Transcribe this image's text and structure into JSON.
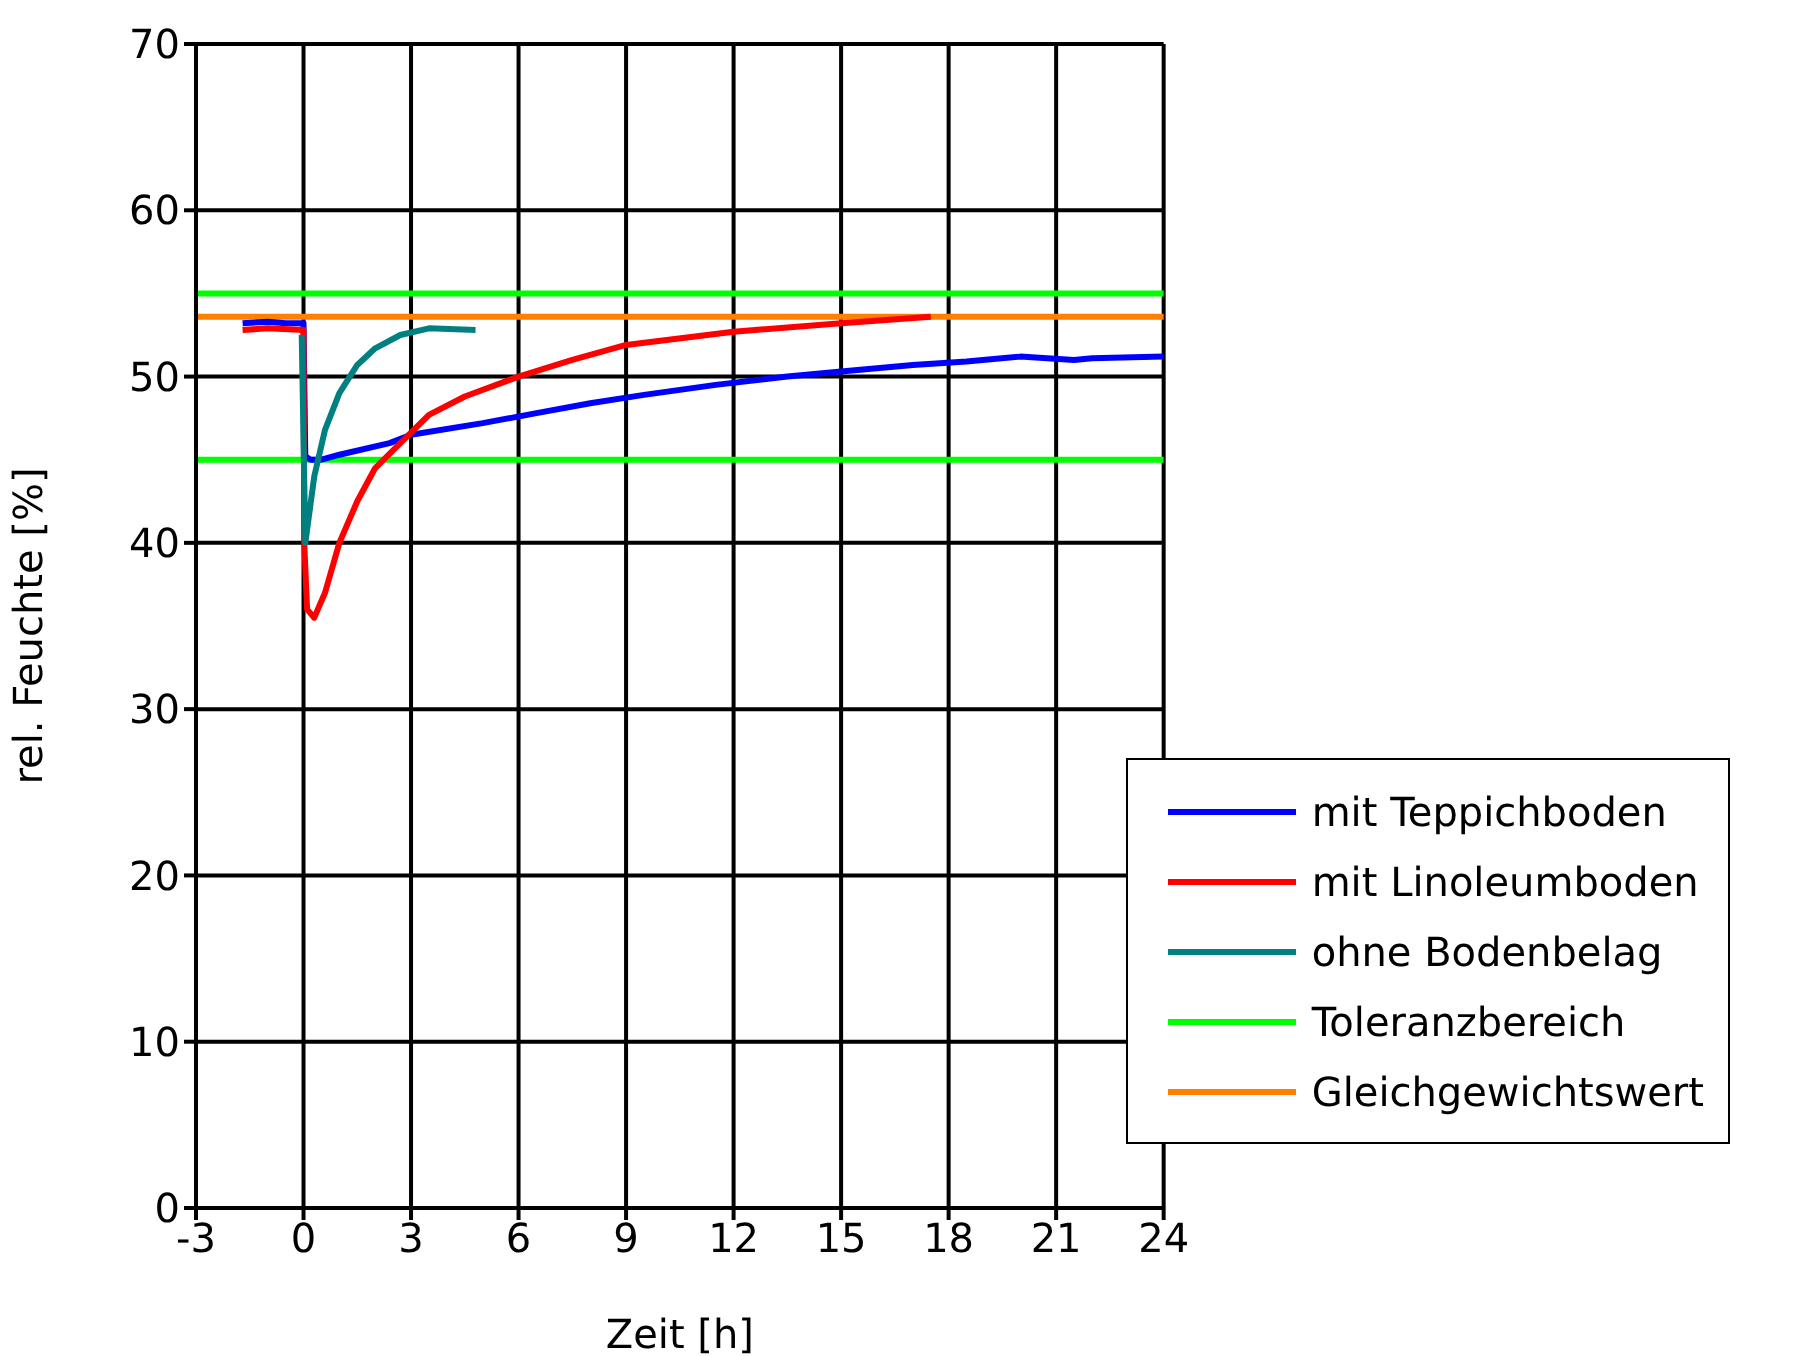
{
  "chart_data": {
    "type": "line",
    "xlabel": "Zeit [h]",
    "ylabel": "rel. Feuchte [%]",
    "xlim": [
      -3,
      24
    ],
    "xticks": [
      -3,
      0,
      3,
      6,
      9,
      12,
      15,
      18,
      21,
      24
    ],
    "ylim": [
      0,
      70
    ],
    "yticks": [
      0,
      10,
      20,
      30,
      40,
      50,
      60,
      70
    ],
    "grid": true,
    "legend": "bottom right",
    "marker": "none",
    "line_style": "solid",
    "series": [
      {
        "name": "mit Teppichboden",
        "color": "#0000ff",
        "x": [
          -1.7,
          -1,
          -0.5,
          0,
          0.05,
          0.2,
          0.5,
          1,
          2.4,
          3,
          5,
          6.5,
          8,
          9.5,
          11.5,
          13.5,
          15,
          17,
          18.5,
          20,
          21.5,
          22,
          24
        ],
        "values": [
          53.2,
          53.3,
          53.2,
          53.2,
          45.2,
          45,
          45,
          45.3,
          46,
          46.5,
          47.2,
          47.8,
          48.4,
          48.9,
          49.5,
          50,
          50.3,
          50.7,
          50.9,
          51.2,
          51,
          51.1,
          51.2
        ]
      },
      {
        "name": "mit Linoleumboden",
        "color": "#ff0000",
        "x": [
          -1.7,
          -1,
          0,
          0.02,
          0.1,
          0.3,
          0.6,
          1,
          1.5,
          2,
          2.7,
          3.5,
          4.5,
          6,
          7.5,
          9,
          12,
          15,
          17.5
        ],
        "values": [
          52.8,
          52.9,
          52.8,
          40,
          36,
          35.5,
          37,
          40,
          42.5,
          44.5,
          46,
          47.7,
          48.8,
          50,
          51,
          51.9,
          52.7,
          53.2,
          53.6
        ]
      },
      {
        "name": "ohne Bodenbelag",
        "color": "#008080",
        "x": [
          -0.05,
          0.05,
          0.3,
          0.6,
          1,
          1.5,
          2,
          2.7,
          3.5,
          4.8
        ],
        "values": [
          52.5,
          40,
          44,
          46.8,
          49,
          50.7,
          51.7,
          52.5,
          52.9,
          52.8
        ]
      }
    ],
    "ref_lines": [
      {
        "axis": "y",
        "value": 45,
        "label": "Toleranzbereich",
        "color": "#00ff00"
      },
      {
        "axis": "y",
        "value": 55,
        "color": "#00ff00"
      },
      {
        "axis": "y",
        "value": 53.6,
        "label": "Gleichgewichtswert",
        "color": "#ff8000"
      }
    ]
  }
}
